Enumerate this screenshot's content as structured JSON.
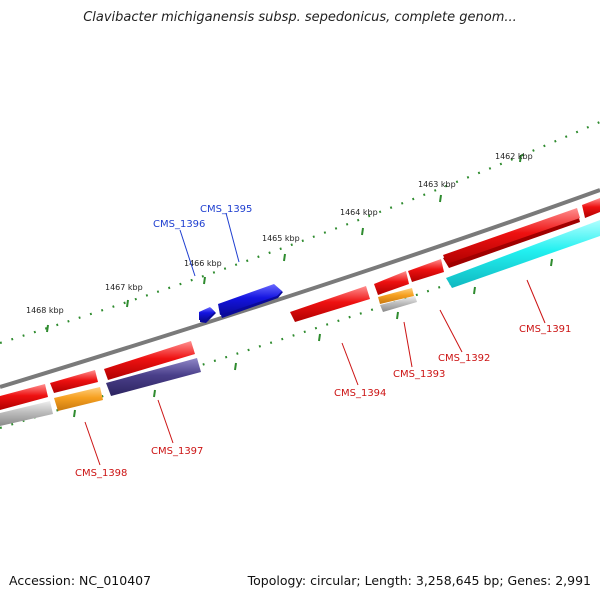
{
  "header": {
    "title": "Clavibacter michiganensis subsp. sepedonicus, complete genom..."
  },
  "footer": {
    "accession": "Accession: NC_010407",
    "info": "Topology: circular; Length: 3,258,645 bp; Genes: 2,991"
  },
  "ruler": {
    "labels": [
      "1462 kbp",
      "1463 kbp",
      "1464 kbp",
      "1465 kbp",
      "1466 kbp",
      "1467 kbp",
      "1468 kbp"
    ]
  },
  "colors": {
    "backbone": "#7a7a7a",
    "ruler_tick": "#2e8b2e",
    "forward_label": "#1f3fd0",
    "reverse_label": "#cc1414",
    "gene_red": "#ee1111",
    "gene_blue": "#1414e0",
    "gene_cyan": "#22f0f0",
    "gene_orange": "#f6a020",
    "gene_purple": "#4a3f8a",
    "gene_grey": "#bdbdbd"
  },
  "genes": {
    "forward": [
      {
        "name": "CMS_1395"
      },
      {
        "name": "CMS_1396"
      }
    ],
    "reverse": [
      {
        "name": "CMS_1391"
      },
      {
        "name": "CMS_1392"
      },
      {
        "name": "CMS_1393"
      },
      {
        "name": "CMS_1394"
      },
      {
        "name": "CMS_1397"
      },
      {
        "name": "CMS_1398"
      }
    ]
  }
}
